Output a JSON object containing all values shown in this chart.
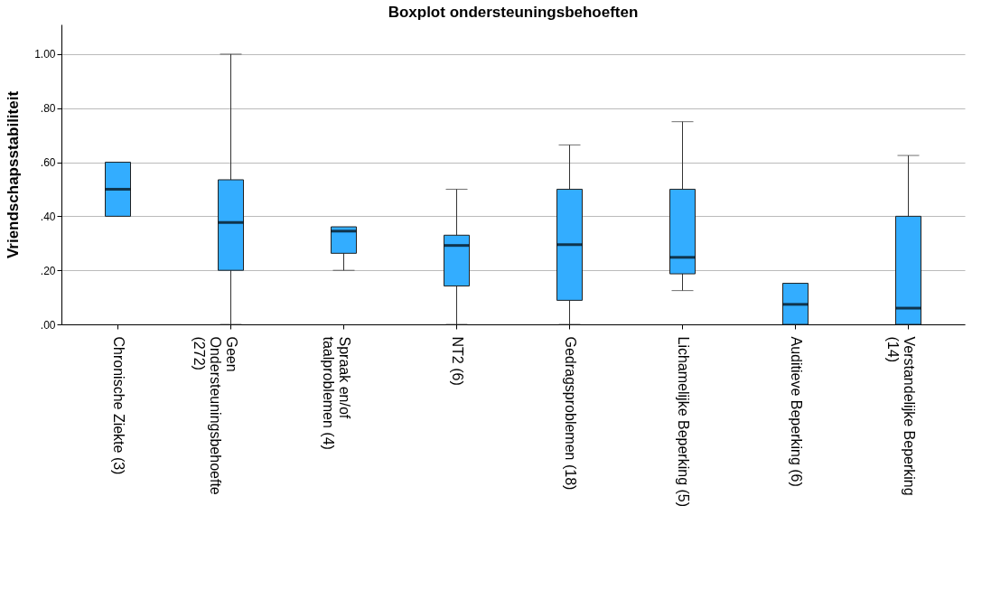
{
  "chart_data": {
    "type": "box",
    "title": "Boxplot ondersteuningsbehoeften",
    "ylabel": "Vriendschapsstabiliteit",
    "categories": [
      "Chronische Ziekte (3)",
      "Geen\nOndersteuningsbehoefte\n(272)",
      "Spraak en/of\ntaalproblemen (4)",
      "NT2 (6)",
      "Gedragsproblemen (18)",
      "Lichamelijke Beperking (5)",
      "Auditieve Beperking (6)",
      "Verstandelijke Beperking\n(14)"
    ],
    "boxes": [
      {
        "low": 0.4,
        "q1": 0.4,
        "median": 0.5,
        "q3": 0.6,
        "high": 0.6
      },
      {
        "low": 0.0,
        "q1": 0.2,
        "median": 0.377,
        "q3": 0.535,
        "high": 1.0
      },
      {
        "low": 0.2,
        "q1": 0.263,
        "median": 0.345,
        "q3": 0.361,
        "high": 0.361
      },
      {
        "low": 0.0,
        "q1": 0.142,
        "median": 0.292,
        "q3": 0.33,
        "high": 0.5
      },
      {
        "low": 0.0,
        "q1": 0.089,
        "median": 0.295,
        "q3": 0.5,
        "high": 0.664
      },
      {
        "low": 0.125,
        "q1": 0.187,
        "median": 0.248,
        "q3": 0.5,
        "high": 0.75
      },
      {
        "low": 0.0,
        "q1": 0.0,
        "median": 0.074,
        "q3": 0.152,
        "high": 0.152
      },
      {
        "low": 0.0,
        "q1": 0.0,
        "median": 0.06,
        "q3": 0.4,
        "high": 0.625
      }
    ],
    "color": "#33adff",
    "ylim": [
      0,
      1.11
    ],
    "yticks": [
      {
        "value": 0,
        "label": ".00"
      },
      {
        "value": 0.2,
        "label": ".20"
      },
      {
        "value": 0.4,
        "label": ".40"
      },
      {
        "value": 0.6,
        "label": ".60"
      },
      {
        "value": 0.8,
        "label": ".80"
      },
      {
        "value": 1.0,
        "label": "1.00"
      }
    ],
    "grid": "y"
  }
}
